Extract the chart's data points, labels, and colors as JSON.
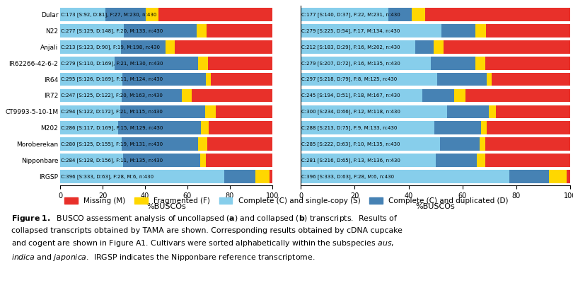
{
  "categories": [
    "Dular",
    "N22",
    "Anjali",
    "IR62266-42-6-2",
    "IR64",
    "IR72",
    "CT9993-5-10-1M",
    "M202",
    "Moroberekan",
    "Nipponbare",
    "IRGSP"
  ],
  "n": 430,
  "panel_a": [
    {
      "label": "C:173 [S:92, D:81], F:27, M:230, n:430",
      "S": 92,
      "D": 81,
      "F": 27,
      "M": 230
    },
    {
      "label": "C:277 [S:129, D:148], F:20, M:133, n:430",
      "S": 129,
      "D": 148,
      "F": 20,
      "M": 133
    },
    {
      "label": "C:213 [S:123, D:90], F:19, M:198, n:430",
      "S": 123,
      "D": 90,
      "F": 19,
      "M": 198
    },
    {
      "label": "C:279 [S:110, D:169], F:21, M:130, n:430",
      "S": 110,
      "D": 169,
      "F": 21,
      "M": 130
    },
    {
      "label": "C:295 [S:126, D:169], F:11, M:124, n:430",
      "S": 126,
      "D": 169,
      "F": 11,
      "M": 124
    },
    {
      "label": "C:247 [S:125, D:122], F:20, M:163, n:430",
      "S": 125,
      "D": 122,
      "F": 20,
      "M": 163
    },
    {
      "label": "C:294 [S:122, D:172], F:21, M:115, n:430",
      "S": 122,
      "D": 172,
      "F": 21,
      "M": 115
    },
    {
      "label": "C:286 [S:117, D:169], F:15, M:129, n:430",
      "S": 117,
      "D": 169,
      "F": 15,
      "M": 129
    },
    {
      "label": "C:280 [S:125, D:155], F:19, M:131, n:430",
      "S": 125,
      "D": 155,
      "F": 19,
      "M": 131
    },
    {
      "label": "C:284 [S:128, D:156], F:11, M:135, n:430",
      "S": 128,
      "D": 156,
      "F": 11,
      "M": 135
    },
    {
      "label": "C:396 [S:333, D:63], F:28, M:6, n:430",
      "S": 333,
      "D": 63,
      "F": 28,
      "M": 6
    }
  ],
  "panel_b": [
    {
      "label": "C:177 [S:140, D:37], F:22, M:231, n:430",
      "S": 140,
      "D": 37,
      "F": 22,
      "M": 231
    },
    {
      "label": "C:279 [S:225, D:54], F:17, M:134, n:430",
      "S": 225,
      "D": 54,
      "F": 17,
      "M": 134
    },
    {
      "label": "C:212 [S:183, D:29], F:16, M:202, n:430",
      "S": 183,
      "D": 29,
      "F": 16,
      "M": 202
    },
    {
      "label": "C:279 [S:207, D:72], F:16, M:135, n:430",
      "S": 207,
      "D": 72,
      "F": 16,
      "M": 135
    },
    {
      "label": "C:297 [S:218, D:79], F:8, M:125, n:430",
      "S": 218,
      "D": 79,
      "F": 8,
      "M": 125
    },
    {
      "label": "C:245 [S:194, D:51], F:18, M:167, n:430",
      "S": 194,
      "D": 51,
      "F": 18,
      "M": 167
    },
    {
      "label": "C:300 [S:234, D:66], F:12, M:118, n:430",
      "S": 234,
      "D": 66,
      "F": 12,
      "M": 118
    },
    {
      "label": "C:288 [S:213, D:75], F:9, M:133, n:430",
      "S": 213,
      "D": 75,
      "F": 9,
      "M": 133
    },
    {
      "label": "C:285 [S:222, D:63], F:10, M:135, n:430",
      "S": 222,
      "D": 63,
      "F": 10,
      "M": 135
    },
    {
      "label": "C:281 [S:216, D:65], F:13, M:136, n:430",
      "S": 216,
      "D": 65,
      "F": 13,
      "M": 136
    },
    {
      "label": "C:396 [S:333, D:63], F:28, M:6, n:430",
      "S": 333,
      "D": 63,
      "F": 28,
      "M": 6
    }
  ],
  "color_S": "#87CEEB",
  "color_D": "#4682B4",
  "color_F": "#FFD700",
  "color_M": "#E8302A",
  "xlabel": "%BUSCOs",
  "xlim": [
    0,
    100
  ],
  "xticks": [
    0,
    20,
    40,
    60,
    80,
    100
  ],
  "bar_height": 0.82,
  "panel_labels": [
    "a",
    "b"
  ],
  "legend_labels": [
    "Missing (M)",
    "Fragmented (F)",
    "Complete (C) and single-copy (S)",
    "Complete (C) and duplicated (D)"
  ],
  "legend_colors": [
    "#E8302A",
    "#FFD700",
    "#87CEEB",
    "#4682B4"
  ]
}
